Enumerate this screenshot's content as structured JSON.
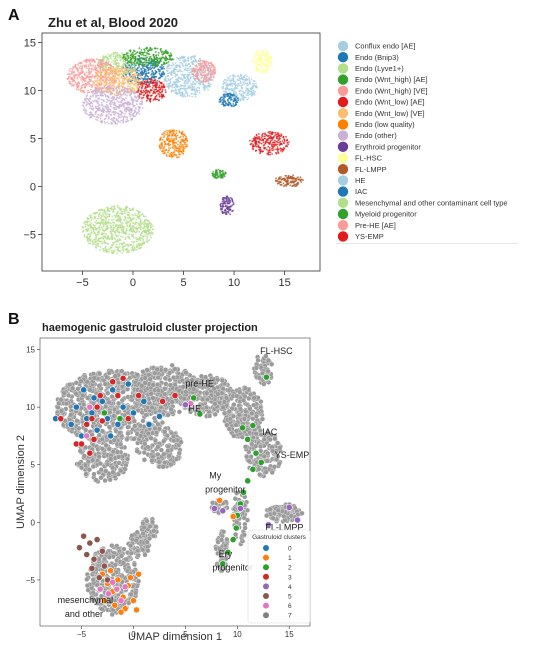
{
  "panel_a": {
    "letter": "A",
    "title": "Zhu et al, Blood 2020"
  },
  "panel_b": {
    "letter": "B",
    "title": "haemogenic gastruloid cluster projection",
    "annotations": [
      {
        "text": "pre-HE",
        "x": 5.0,
        "y": 11.8
      },
      {
        "text": "FL-HSC",
        "x": 12.2,
        "y": 14.6
      },
      {
        "text": "HE",
        "x": 5.3,
        "y": 9.6
      },
      {
        "text": "IAC",
        "x": 12.4,
        "y": 7.6
      },
      {
        "text": "YS-EMP",
        "x": 13.6,
        "y": 5.6
      },
      {
        "text": "My",
        "x": 7.3,
        "y": 3.8
      },
      {
        "text": "progenitor",
        "x": 6.9,
        "y": 2.6
      },
      {
        "text": "FL-LMPP",
        "x": 12.7,
        "y": -0.7
      },
      {
        "text": "Ery",
        "x": 8.2,
        "y": -3.0
      },
      {
        "text": "progenitor",
        "x": 7.6,
        "y": -4.2
      },
      {
        "text": "mesenchymal",
        "x": -7.3,
        "y": -7.0
      },
      {
        "text": "and other",
        "x": -6.6,
        "y": -8.2
      }
    ]
  },
  "chart_data": [
    {
      "type": "scatter",
      "title": "Zhu et al, Blood 2020",
      "xlabel": "",
      "ylabel": "",
      "xlim": [
        -9,
        18.5
      ],
      "ylim": [
        -8.8,
        16
      ],
      "xticks": [
        -5,
        0,
        5,
        10,
        15
      ],
      "yticks": [
        -5,
        0,
        5,
        10,
        15
      ],
      "grid": false,
      "legend": "right",
      "clusters": [
        {
          "name": "Conflux endo [AE]",
          "color": "#a6cee3",
          "cx": 5.5,
          "cy": 11.5,
          "rx": 2.5,
          "ry": 2.2
        },
        {
          "name": "Endo (Bnip3)",
          "color": "#1f78b4",
          "cx": 1.0,
          "cy": 12.0,
          "rx": 2.2,
          "ry": 1.4
        },
        {
          "name": "Endo (Lyve1+)",
          "color": "#b2df8a",
          "cx": -1.5,
          "cy": 12.8,
          "rx": 2.0,
          "ry": 1.2
        },
        {
          "name": "Endo (Wnt_high) [AE]",
          "color": "#33a02c",
          "cx": 1.5,
          "cy": 13.5,
          "rx": 2.5,
          "ry": 1.0
        },
        {
          "name": "Endo (Wnt_high) [VE]",
          "color": "#fb9a99",
          "cx": -4.0,
          "cy": 11.5,
          "rx": 2.5,
          "ry": 1.8
        },
        {
          "name": "Endo (Wnt_low) [AE]",
          "color": "#e31a1c",
          "cx": 1.8,
          "cy": 10.0,
          "rx": 1.5,
          "ry": 1.2
        },
        {
          "name": "Endo (Wnt_low) [VE]",
          "color": "#fdbf6f",
          "cx": -1.5,
          "cy": 11.0,
          "rx": 2.5,
          "ry": 1.5
        },
        {
          "name": "Endo (low quality)",
          "color": "#ff7f00",
          "cx": 4.0,
          "cy": 4.5,
          "rx": 1.4,
          "ry": 1.6
        },
        {
          "name": "Endo (other)",
          "color": "#cab2d6",
          "cx": -2.0,
          "cy": 8.5,
          "rx": 3.0,
          "ry": 2.0
        },
        {
          "name": "Erythroid progenitor",
          "color": "#6a3d9a",
          "cx": 9.3,
          "cy": -2.0,
          "rx": 0.7,
          "ry": 1.0
        },
        {
          "name": "FL-HSC",
          "color": "#ffff99",
          "cx": 12.8,
          "cy": 13.0,
          "rx": 1.0,
          "ry": 1.3
        },
        {
          "name": "FL-LMPP",
          "color": "#b15928",
          "cx": 15.5,
          "cy": 0.6,
          "rx": 1.5,
          "ry": 0.6
        },
        {
          "name": "HE",
          "color": "#a6cee3",
          "cx": 10.5,
          "cy": 10.3,
          "rx": 1.8,
          "ry": 1.4
        },
        {
          "name": "IAC",
          "color": "#1f78b4",
          "cx": 9.5,
          "cy": 9.0,
          "rx": 1.0,
          "ry": 0.7
        },
        {
          "name": "Mesenchymal and other contaminant cell type",
          "color": "#b2df8a",
          "cx": -1.5,
          "cy": -4.5,
          "rx": 3.5,
          "ry": 2.5
        },
        {
          "name": "Myeloid progenitor",
          "color": "#33a02c",
          "cx": 8.5,
          "cy": 1.3,
          "rx": 0.7,
          "ry": 0.5
        },
        {
          "name": "Pre-HE [AE]",
          "color": "#fb9a99",
          "cx": 7.0,
          "cy": 12.0,
          "rx": 1.2,
          "ry": 1.2
        },
        {
          "name": "YS-EMP",
          "color": "#e31a1c",
          "cx": 13.5,
          "cy": 4.5,
          "rx": 2.0,
          "ry": 1.2
        }
      ]
    },
    {
      "type": "scatter",
      "title": "haemogenic gastruloid cluster projection",
      "xlabel": "UMAP dimension 1",
      "ylabel": "UMAP dimension 2",
      "xlim": [
        -9,
        17
      ],
      "ylim": [
        -9,
        16
      ],
      "xticks": [
        -5,
        0,
        5,
        10,
        15
      ],
      "yticks": [
        -5,
        0,
        5,
        10,
        15
      ],
      "grid": false,
      "legend_title": "Gastruloid clusters",
      "legend": "bottom-right",
      "series": [
        {
          "name": "0",
          "color": "#1f77b4"
        },
        {
          "name": "1",
          "color": "#ff7f0e"
        },
        {
          "name": "2",
          "color": "#2ca02c"
        },
        {
          "name": "3",
          "color": "#d62728"
        },
        {
          "name": "4",
          "color": "#9467bd"
        },
        {
          "name": "5",
          "color": "#8c564b"
        },
        {
          "name": "6",
          "color": "#e377c2"
        },
        {
          "name": "7",
          "color": "#7f7f7f"
        }
      ],
      "points": [
        {
          "c": 0,
          "x": -7.5,
          "y": 9.0
        },
        {
          "c": 0,
          "x": -6.0,
          "y": 8.5
        },
        {
          "c": 0,
          "x": -5.5,
          "y": 10.0
        },
        {
          "c": 0,
          "x": -4.8,
          "y": 11.5
        },
        {
          "c": 0,
          "x": -4.0,
          "y": 9.5
        },
        {
          "c": 0,
          "x": -3.5,
          "y": 8.0
        },
        {
          "c": 0,
          "x": -3.0,
          "y": 10.5
        },
        {
          "c": 0,
          "x": -2.5,
          "y": 9.0
        },
        {
          "c": 0,
          "x": -2.0,
          "y": 11.5
        },
        {
          "c": 0,
          "x": -1.5,
          "y": 8.5
        },
        {
          "c": 0,
          "x": -1.0,
          "y": 10.0
        },
        {
          "c": 0,
          "x": -0.5,
          "y": 12.0
        },
        {
          "c": 0,
          "x": 0.0,
          "y": 9.5
        },
        {
          "c": 0,
          "x": 1.0,
          "y": 10.5
        },
        {
          "c": 0,
          "x": 1.5,
          "y": 8.5
        },
        {
          "c": 0,
          "x": 2.5,
          "y": 9.2
        },
        {
          "c": 0,
          "x": -5.0,
          "y": 7.5
        },
        {
          "c": 0,
          "x": -4.5,
          "y": 9.0
        },
        {
          "c": 0,
          "x": -3.8,
          "y": 10.8
        },
        {
          "c": 0,
          "x": -2.2,
          "y": 7.5
        },
        {
          "c": 3,
          "x": -5.5,
          "y": 6.8
        },
        {
          "c": 3,
          "x": -5.0,
          "y": 6.8
        },
        {
          "c": 3,
          "x": -4.5,
          "y": 8.5
        },
        {
          "c": 3,
          "x": -4.0,
          "y": 9.0
        },
        {
          "c": 3,
          "x": -3.5,
          "y": 10.0
        },
        {
          "c": 3,
          "x": -3.0,
          "y": 8.8
        },
        {
          "c": 3,
          "x": -3.2,
          "y": 11.0
        },
        {
          "c": 3,
          "x": -2.0,
          "y": 12.2
        },
        {
          "c": 3,
          "x": -1.0,
          "y": 12.5
        },
        {
          "c": 3,
          "x": -0.5,
          "y": 9.0
        },
        {
          "c": 3,
          "x": 2.8,
          "y": 10.5
        },
        {
          "c": 3,
          "x": 4.0,
          "y": 11.0
        },
        {
          "c": 3,
          "x": 5.0,
          "y": 10.2
        },
        {
          "c": 3,
          "x": -7.0,
          "y": 9.0
        },
        {
          "c": 3,
          "x": -4.2,
          "y": 6.0
        },
        {
          "c": 3,
          "x": -3.8,
          "y": 7.2
        },
        {
          "c": 3,
          "x": -1.5,
          "y": 11.0
        },
        {
          "c": 3,
          "x": 0.5,
          "y": 11.0
        },
        {
          "c": 6,
          "x": -4.5,
          "y": 7.5
        },
        {
          "c": 6,
          "x": -4.2,
          "y": 10.0
        },
        {
          "c": 6,
          "x": 5.5,
          "y": 10.3
        },
        {
          "c": 2,
          "x": -2.8,
          "y": 9.5
        },
        {
          "c": 2,
          "x": -1.3,
          "y": 9.0
        },
        {
          "c": 2,
          "x": 5.8,
          "y": 10.8
        },
        {
          "c": 2,
          "x": 6.4,
          "y": 9.4
        },
        {
          "c": 2,
          "x": 12.8,
          "y": 12.6
        },
        {
          "c": 2,
          "x": 10.5,
          "y": 8.2
        },
        {
          "c": 2,
          "x": 11.5,
          "y": 8.4
        },
        {
          "c": 2,
          "x": 11.0,
          "y": 7.2
        },
        {
          "c": 2,
          "x": 11.8,
          "y": 6.0
        },
        {
          "c": 2,
          "x": 12.3,
          "y": 5.2
        },
        {
          "c": 2,
          "x": 11.5,
          "y": 4.6
        },
        {
          "c": 2,
          "x": 11.0,
          "y": 3.6
        },
        {
          "c": 2,
          "x": 10.6,
          "y": 2.6
        },
        {
          "c": 2,
          "x": 10.3,
          "y": 1.6
        },
        {
          "c": 2,
          "x": 10.0,
          "y": 0.6
        },
        {
          "c": 2,
          "x": 9.9,
          "y": -0.5
        },
        {
          "c": 2,
          "x": 9.6,
          "y": -1.5
        },
        {
          "c": 2,
          "x": 9.1,
          "y": -2.6
        },
        {
          "c": 2,
          "x": 8.6,
          "y": -3.6
        },
        {
          "c": 4,
          "x": 7.8,
          "y": 1.2
        },
        {
          "c": 4,
          "x": 8.6,
          "y": 1.0
        },
        {
          "c": 4,
          "x": 10.3,
          "y": 1.2
        },
        {
          "c": 4,
          "x": 15.0,
          "y": 1.3
        },
        {
          "c": 4,
          "x": 15.8,
          "y": 0.2
        },
        {
          "c": 4,
          "x": 13.0,
          "y": -0.2
        },
        {
          "c": 4,
          "x": 5.0,
          "y": 10.2
        },
        {
          "c": 1,
          "x": 8.3,
          "y": 1.9
        },
        {
          "c": 1,
          "x": 9.6,
          "y": 0.5
        },
        {
          "c": 1,
          "x": -3.0,
          "y": -4.5
        },
        {
          "c": 1,
          "x": -2.5,
          "y": -5.3
        },
        {
          "c": 1,
          "x": -2.0,
          "y": -6.0
        },
        {
          "c": 1,
          "x": -1.5,
          "y": -5.0
        },
        {
          "c": 1,
          "x": -1.0,
          "y": -6.5
        },
        {
          "c": 1,
          "x": -0.5,
          "y": -5.5
        },
        {
          "c": 1,
          "x": 0.0,
          "y": -6.8
        },
        {
          "c": 1,
          "x": -2.8,
          "y": -6.8
        },
        {
          "c": 1,
          "x": -1.8,
          "y": -7.2
        },
        {
          "c": 1,
          "x": -0.8,
          "y": -7.5
        },
        {
          "c": 1,
          "x": 0.3,
          "y": -7.6
        },
        {
          "c": 1,
          "x": -2.2,
          "y": -4.2
        },
        {
          "c": 1,
          "x": -0.3,
          "y": -4.8
        },
        {
          "c": 1,
          "x": -1.2,
          "y": -7.8
        },
        {
          "c": 1,
          "x": 0.5,
          "y": -4.5
        },
        {
          "c": 5,
          "x": -4.8,
          "y": -1.2
        },
        {
          "c": 5,
          "x": -4.2,
          "y": -1.8
        },
        {
          "c": 5,
          "x": -3.5,
          "y": -1.5
        },
        {
          "c": 5,
          "x": -4.5,
          "y": -2.8
        },
        {
          "c": 5,
          "x": -3.8,
          "y": -3.2
        },
        {
          "c": 5,
          "x": -3.0,
          "y": -2.5
        },
        {
          "c": 5,
          "x": -4.0,
          "y": -4.0
        },
        {
          "c": 5,
          "x": -2.8,
          "y": -3.8
        },
        {
          "c": 5,
          "x": -3.3,
          "y": -4.8
        },
        {
          "c": 5,
          "x": -2.5,
          "y": -5.0
        },
        {
          "c": 5,
          "x": -5.2,
          "y": -2.2
        },
        {
          "c": 6,
          "x": -3.2,
          "y": -5.8
        },
        {
          "c": 6,
          "x": -2.4,
          "y": -6.2
        },
        {
          "c": 6,
          "x": -1.6,
          "y": -5.8
        },
        {
          "c": 6,
          "x": -0.8,
          "y": -5.6
        },
        {
          "c": 6,
          "x": -2.0,
          "y": -5.2
        },
        {
          "c": 6,
          "x": -1.2,
          "y": -6.8
        }
      ],
      "background_cloud": "projected cells (grey)"
    }
  ]
}
